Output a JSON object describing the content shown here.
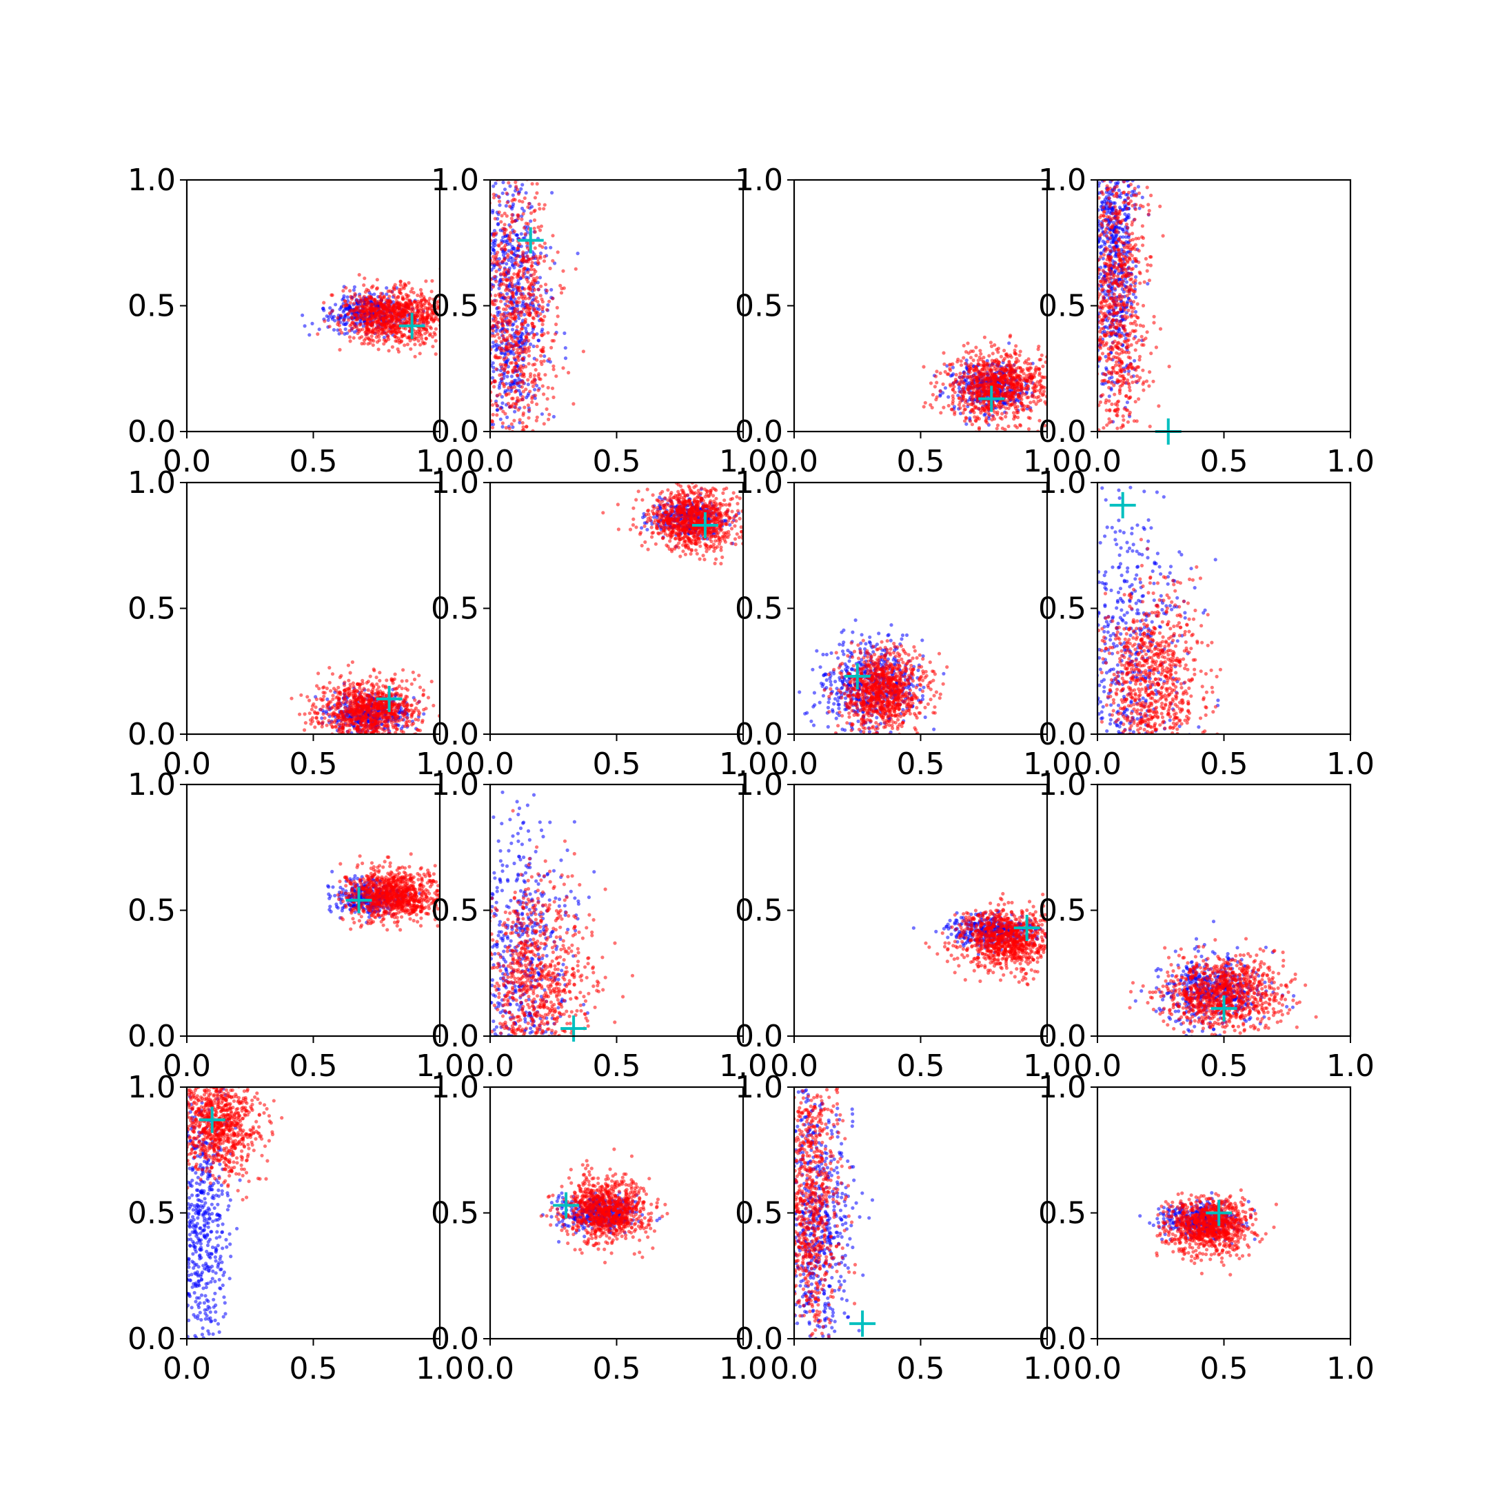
{
  "figure": {
    "grid": "4x4",
    "colors": {
      "blue_series": "#0000ff",
      "red_series": "#ff0000",
      "marker": "#00bfbf"
    }
  },
  "chart_data": [
    {
      "type": "scatter",
      "xlim": [
        0,
        1
      ],
      "ylim": [
        0,
        1
      ],
      "xticks": [
        "0.0",
        "0.5",
        "1.0"
      ],
      "yticks": [
        "0.0",
        "0.5",
        "1.0"
      ],
      "grid": false,
      "blue": {
        "cx": 0.72,
        "cy": 0.47,
        "sx": 0.08,
        "sy": 0.035,
        "n": 350
      },
      "red": {
        "cx": 0.82,
        "cy": 0.46,
        "sx": 0.1,
        "sy": 0.055,
        "n": 900
      },
      "marker": {
        "x": 0.89,
        "y": 0.42
      }
    },
    {
      "type": "scatter",
      "xlim": [
        0,
        1
      ],
      "ylim": [
        0,
        1
      ],
      "xticks": [
        "0.0",
        "0.5",
        "1.0"
      ],
      "yticks": [
        "0.0",
        "0.5",
        "1.0"
      ],
      "grid": false,
      "blue": {
        "cx": 0.08,
        "cy": 0.5,
        "sx": 0.07,
        "sy": 0.3,
        "n": 650
      },
      "red": {
        "cx": 0.1,
        "cy": 0.45,
        "sx": 0.08,
        "sy": 0.28,
        "n": 800
      },
      "marker": {
        "x": 0.16,
        "y": 0.76
      }
    },
    {
      "type": "scatter",
      "xlim": [
        0,
        1
      ],
      "ylim": [
        0,
        1
      ],
      "xticks": [
        "0.0",
        "0.5",
        "1.0"
      ],
      "yticks": [
        "0.0",
        "0.5",
        "1.0"
      ],
      "grid": false,
      "blue": {
        "cx": 0.78,
        "cy": 0.17,
        "sx": 0.08,
        "sy": 0.05,
        "n": 350
      },
      "red": {
        "cx": 0.8,
        "cy": 0.18,
        "sx": 0.1,
        "sy": 0.07,
        "n": 900
      },
      "marker": {
        "x": 0.78,
        "y": 0.13
      }
    },
    {
      "type": "scatter",
      "xlim": [
        0,
        1
      ],
      "ylim": [
        0,
        1
      ],
      "xticks": [
        "0.0",
        "0.5",
        "1.0"
      ],
      "yticks": [
        "0.0",
        "0.5",
        "1.0"
      ],
      "grid": false,
      "blue": {
        "cx": 0.06,
        "cy": 0.7,
        "sx": 0.05,
        "sy": 0.25,
        "n": 650
      },
      "red": {
        "cx": 0.08,
        "cy": 0.5,
        "sx": 0.06,
        "sy": 0.3,
        "n": 800
      },
      "marker": {
        "x": 0.28,
        "y": 0.0
      }
    },
    {
      "type": "scatter",
      "xlim": [
        0,
        1
      ],
      "ylim": [
        0,
        1
      ],
      "xticks": [
        "0.0",
        "0.5",
        "1.0"
      ],
      "yticks": [
        "0.0",
        "0.5",
        "1.0"
      ],
      "grid": false,
      "blue": {
        "cx": 0.72,
        "cy": 0.08,
        "sx": 0.08,
        "sy": 0.04,
        "n": 350
      },
      "red": {
        "cx": 0.72,
        "cy": 0.09,
        "sx": 0.1,
        "sy": 0.06,
        "n": 900
      },
      "marker": {
        "x": 0.8,
        "y": 0.14
      }
    },
    {
      "type": "scatter",
      "xlim": [
        0,
        1
      ],
      "ylim": [
        0,
        1
      ],
      "xticks": [
        "0.0",
        "0.5",
        "1.0"
      ],
      "yticks": [
        "0.0",
        "0.5",
        "1.0"
      ],
      "grid": false,
      "blue": {
        "cx": 0.78,
        "cy": 0.86,
        "sx": 0.07,
        "sy": 0.035,
        "n": 350
      },
      "red": {
        "cx": 0.8,
        "cy": 0.85,
        "sx": 0.09,
        "sy": 0.06,
        "n": 900
      },
      "marker": {
        "x": 0.85,
        "y": 0.83
      }
    },
    {
      "type": "scatter",
      "xlim": [
        0,
        1
      ],
      "ylim": [
        0,
        1
      ],
      "xticks": [
        "0.0",
        "0.5",
        "1.0"
      ],
      "yticks": [
        "0.0",
        "0.5",
        "1.0"
      ],
      "grid": false,
      "blue": {
        "cx": 0.3,
        "cy": 0.2,
        "sx": 0.1,
        "sy": 0.09,
        "n": 500
      },
      "red": {
        "cx": 0.35,
        "cy": 0.17,
        "sx": 0.08,
        "sy": 0.08,
        "n": 900
      },
      "marker": {
        "x": 0.25,
        "y": 0.23
      }
    },
    {
      "type": "scatter",
      "xlim": [
        0,
        1
      ],
      "ylim": [
        0,
        1
      ],
      "xticks": [
        "0.0",
        "0.5",
        "1.0"
      ],
      "yticks": [
        "0.0",
        "0.5",
        "1.0"
      ],
      "grid": false,
      "blue": {
        "cx": 0.1,
        "cy": 0.3,
        "sx": 0.12,
        "sy": 0.3,
        "n": 550
      },
      "red": {
        "cx": 0.22,
        "cy": 0.2,
        "sx": 0.1,
        "sy": 0.18,
        "n": 850
      },
      "marker": {
        "x": 0.1,
        "y": 0.91
      }
    },
    {
      "type": "scatter",
      "xlim": [
        0,
        1
      ],
      "ylim": [
        0,
        1
      ],
      "xticks": [
        "0.0",
        "0.5",
        "1.0"
      ],
      "yticks": [
        "0.0",
        "0.5",
        "1.0"
      ],
      "grid": false,
      "blue": {
        "cx": 0.72,
        "cy": 0.55,
        "sx": 0.07,
        "sy": 0.035,
        "n": 350
      },
      "red": {
        "cx": 0.82,
        "cy": 0.56,
        "sx": 0.09,
        "sy": 0.05,
        "n": 900
      },
      "marker": {
        "x": 0.68,
        "y": 0.54
      }
    },
    {
      "type": "scatter",
      "xlim": [
        0,
        1
      ],
      "ylim": [
        0,
        1
      ],
      "xticks": [
        "0.0",
        "0.5",
        "1.0"
      ],
      "yticks": [
        "0.0",
        "0.5",
        "1.0"
      ],
      "grid": false,
      "blue": {
        "cx": 0.12,
        "cy": 0.3,
        "sx": 0.1,
        "sy": 0.28,
        "n": 550
      },
      "red": {
        "cx": 0.18,
        "cy": 0.2,
        "sx": 0.11,
        "sy": 0.2,
        "n": 850
      },
      "marker": {
        "x": 0.33,
        "y": 0.03
      }
    },
    {
      "type": "scatter",
      "xlim": [
        0,
        1
      ],
      "ylim": [
        0,
        1
      ],
      "xticks": [
        "0.0",
        "0.5",
        "1.0"
      ],
      "yticks": [
        "0.0",
        "0.5",
        "1.0"
      ],
      "grid": false,
      "blue": {
        "cx": 0.78,
        "cy": 0.42,
        "sx": 0.08,
        "sy": 0.03,
        "n": 350
      },
      "red": {
        "cx": 0.84,
        "cy": 0.38,
        "sx": 0.09,
        "sy": 0.06,
        "n": 900
      },
      "marker": {
        "x": 0.92,
        "y": 0.43
      }
    },
    {
      "type": "scatter",
      "xlim": [
        0,
        1
      ],
      "ylim": [
        0,
        1
      ],
      "xticks": [
        "0.0",
        "0.5",
        "1.0"
      ],
      "yticks": [
        "0.0",
        "0.5",
        "1.0"
      ],
      "grid": false,
      "blue": {
        "cx": 0.45,
        "cy": 0.18,
        "sx": 0.1,
        "sy": 0.07,
        "n": 450
      },
      "red": {
        "cx": 0.5,
        "cy": 0.17,
        "sx": 0.12,
        "sy": 0.07,
        "n": 900
      },
      "marker": {
        "x": 0.5,
        "y": 0.11
      }
    },
    {
      "type": "scatter",
      "xlim": [
        0,
        1
      ],
      "ylim": [
        0,
        1
      ],
      "xticks": [
        "0.0",
        "0.5",
        "1.0"
      ],
      "yticks": [
        "0.0",
        "0.5",
        "1.0"
      ],
      "grid": false,
      "blue": {
        "cx": 0.06,
        "cy": 0.45,
        "sx": 0.05,
        "sy": 0.3,
        "n": 550
      },
      "red": {
        "cx": 0.12,
        "cy": 0.85,
        "sx": 0.08,
        "sy": 0.1,
        "n": 850
      },
      "marker": {
        "x": 0.1,
        "y": 0.87
      }
    },
    {
      "type": "scatter",
      "xlim": [
        0,
        1
      ],
      "ylim": [
        0,
        1
      ],
      "xticks": [
        "0.0",
        "0.5",
        "1.0"
      ],
      "yticks": [
        "0.0",
        "0.5",
        "1.0"
      ],
      "grid": false,
      "blue": {
        "cx": 0.42,
        "cy": 0.5,
        "sx": 0.08,
        "sy": 0.035,
        "n": 350
      },
      "red": {
        "cx": 0.46,
        "cy": 0.51,
        "sx": 0.08,
        "sy": 0.06,
        "n": 900
      },
      "marker": {
        "x": 0.3,
        "y": 0.53
      }
    },
    {
      "type": "scatter",
      "xlim": [
        0,
        1
      ],
      "ylim": [
        0,
        1
      ],
      "xticks": [
        "0.0",
        "0.5",
        "1.0"
      ],
      "yticks": [
        "0.0",
        "0.5",
        "1.0"
      ],
      "grid": false,
      "blue": {
        "cx": 0.08,
        "cy": 0.45,
        "sx": 0.07,
        "sy": 0.28,
        "n": 650
      },
      "red": {
        "cx": 0.07,
        "cy": 0.55,
        "sx": 0.06,
        "sy": 0.28,
        "n": 800
      },
      "marker": {
        "x": 0.27,
        "y": 0.06
      }
    },
    {
      "type": "scatter",
      "xlim": [
        0,
        1
      ],
      "ylim": [
        0,
        1
      ],
      "xticks": [
        "0.0",
        "0.5",
        "1.0"
      ],
      "yticks": [
        "0.0",
        "0.5",
        "1.0"
      ],
      "grid": false,
      "blue": {
        "cx": 0.4,
        "cy": 0.47,
        "sx": 0.08,
        "sy": 0.035,
        "n": 350
      },
      "red": {
        "cx": 0.44,
        "cy": 0.45,
        "sx": 0.08,
        "sy": 0.055,
        "n": 900
      },
      "marker": {
        "x": 0.48,
        "y": 0.5
      }
    }
  ]
}
